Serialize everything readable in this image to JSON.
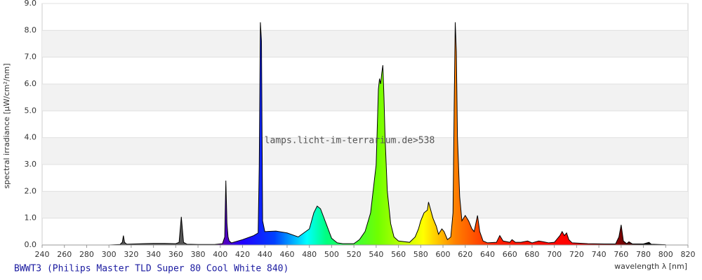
{
  "chart_data": {
    "type": "area",
    "title": "BWWT3 (Philips Master TLD Super 80 Cool White 840)",
    "watermark": "lamps.licht-im-terrarium.de>538",
    "x_label": "wavelength λ [nm]",
    "y_label": "spectral irradiance [µW/cm²/nm]",
    "xlim": [
      240,
      820
    ],
    "ylim": [
      0,
      9
    ],
    "xticks": [
      240,
      260,
      280,
      300,
      320,
      340,
      360,
      380,
      400,
      420,
      440,
      460,
      480,
      500,
      520,
      540,
      560,
      580,
      600,
      620,
      640,
      660,
      680,
      700,
      720,
      740,
      760,
      780,
      800,
      820
    ],
    "yticks": [
      {
        "value": 0,
        "label": "0.0"
      },
      {
        "value": 1,
        "label": "1.0"
      },
      {
        "value": 2,
        "label": "2.0"
      },
      {
        "value": 3,
        "label": "3.0"
      },
      {
        "value": 4,
        "label": "4.0"
      },
      {
        "value": 5,
        "label": "5.0"
      },
      {
        "value": 6,
        "label": "6.0"
      },
      {
        "value": 7,
        "label": "7.0"
      },
      {
        "value": 8,
        "label": "8.0"
      },
      {
        "value": 9,
        "label": "9.0"
      }
    ],
    "grid": true,
    "x": [
      300,
      310,
      312,
      313,
      314,
      316,
      330,
      340,
      350,
      360,
      363,
      365,
      367,
      370,
      380,
      395,
      402,
      404,
      405,
      406,
      407,
      408,
      410,
      420,
      430,
      434,
      435,
      436,
      437,
      438,
      440,
      450,
      460,
      470,
      480,
      484,
      487,
      490,
      495,
      500,
      505,
      510,
      520,
      525,
      530,
      535,
      540,
      542,
      543,
      544,
      545,
      546,
      547,
      548,
      550,
      553,
      556,
      560,
      570,
      575,
      578,
      580,
      583,
      586,
      587,
      589,
      591,
      594,
      596,
      599,
      601,
      604,
      607,
      609,
      610,
      611,
      612,
      613,
      615,
      617,
      620,
      623,
      626,
      628,
      630,
      631,
      633,
      636,
      640,
      648,
      651,
      654,
      660,
      662,
      665,
      670,
      676,
      680,
      686,
      690,
      695,
      700,
      705,
      707,
      709,
      711,
      713,
      716,
      730,
      745,
      755,
      758,
      760,
      762,
      765,
      767,
      770,
      780,
      785,
      787,
      800
    ],
    "values": [
      0,
      0.02,
      0.1,
      0.35,
      0.1,
      0.03,
      0.05,
      0.06,
      0.06,
      0.05,
      0.1,
      1.05,
      0.1,
      0.03,
      0.02,
      0.02,
      0.05,
      0.3,
      2.4,
      0.8,
      0.3,
      0.15,
      0.08,
      0.2,
      0.35,
      0.45,
      3.0,
      8.3,
      7.6,
      0.9,
      0.5,
      0.52,
      0.45,
      0.3,
      0.6,
      1.2,
      1.45,
      1.35,
      0.8,
      0.25,
      0.08,
      0.05,
      0.05,
      0.2,
      0.5,
      1.2,
      3.0,
      5.8,
      6.2,
      6.0,
      6.4,
      6.7,
      5.5,
      4.0,
      2.0,
      0.8,
      0.3,
      0.15,
      0.1,
      0.3,
      0.6,
      0.9,
      1.2,
      1.3,
      1.6,
      1.3,
      1.0,
      0.7,
      0.4,
      0.6,
      0.5,
      0.2,
      0.3,
      1.2,
      5.0,
      8.3,
      7.2,
      4.0,
      1.8,
      0.9,
      1.1,
      0.9,
      0.6,
      0.5,
      0.9,
      1.1,
      0.5,
      0.15,
      0.08,
      0.1,
      0.35,
      0.15,
      0.1,
      0.2,
      0.1,
      0.1,
      0.15,
      0.08,
      0.15,
      0.12,
      0.08,
      0.1,
      0.35,
      0.5,
      0.35,
      0.45,
      0.2,
      0.08,
      0.05,
      0.04,
      0.04,
      0.3,
      0.75,
      0.15,
      0.05,
      0.12,
      0.04,
      0.04,
      0.1,
      0.03,
      0.01
    ]
  }
}
